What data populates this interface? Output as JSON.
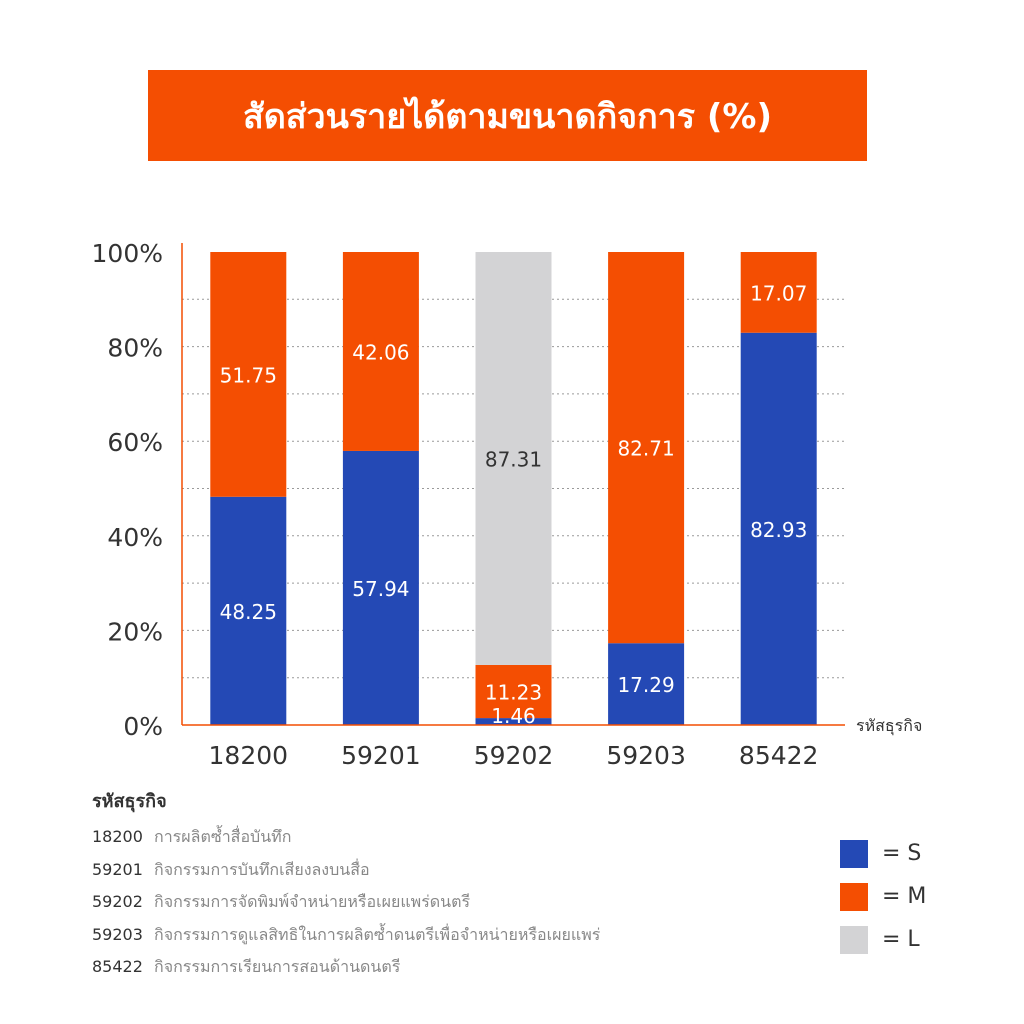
{
  "title": "สัดส่วนรายได้ตามขนาดกิจการ (%)",
  "colors": {
    "accent": "#F44E02",
    "S": "#2449B5",
    "M": "#F44E02",
    "L": "#D3D3D5"
  },
  "chart_data": {
    "type": "bar",
    "stacked": true,
    "categories": [
      "18200",
      "59201",
      "59202",
      "59203",
      "85422"
    ],
    "series": [
      {
        "name": "S",
        "values": [
          48.25,
          57.94,
          1.46,
          17.29,
          82.93
        ]
      },
      {
        "name": "M",
        "values": [
          51.75,
          42.06,
          11.23,
          82.71,
          17.07
        ]
      },
      {
        "name": "L",
        "values": [
          0,
          0,
          87.31,
          0,
          0
        ]
      }
    ],
    "y_ticks": [
      "0%",
      "20%",
      "40%",
      "60%",
      "80%",
      "100%"
    ],
    "ylim": [
      0,
      100
    ],
    "xlabel": "รหัสธุรกิจ",
    "grid": "dotted horizontal",
    "legend_position": "bottom-right"
  },
  "code_legend": {
    "heading": "รหัสธุรกิจ",
    "items": [
      {
        "code": "18200",
        "desc": "การผลิตซ้ำสื่อบันทึก"
      },
      {
        "code": "59201",
        "desc": "กิจกรรมการบันทึกเสียงลงบนสื่อ"
      },
      {
        "code": "59202",
        "desc": "กิจกรรมการจัดพิมพ์จำหน่ายหรือเผยแพร่ดนตรี"
      },
      {
        "code": "59203",
        "desc": "กิจกรรมการดูแลสิทธิในการผลิตซ้ำดนตรีเพื่อจำหน่ายหรือเผยแพร่"
      },
      {
        "code": "85422",
        "desc": "กิจกรรมการเรียนการสอนด้านดนตรี"
      }
    ]
  },
  "size_legend": [
    {
      "label": "= S",
      "color": "#2449B5"
    },
    {
      "label": "= M",
      "color": "#F44E02"
    },
    {
      "label": "= L",
      "color": "#D3D3D5"
    }
  ]
}
